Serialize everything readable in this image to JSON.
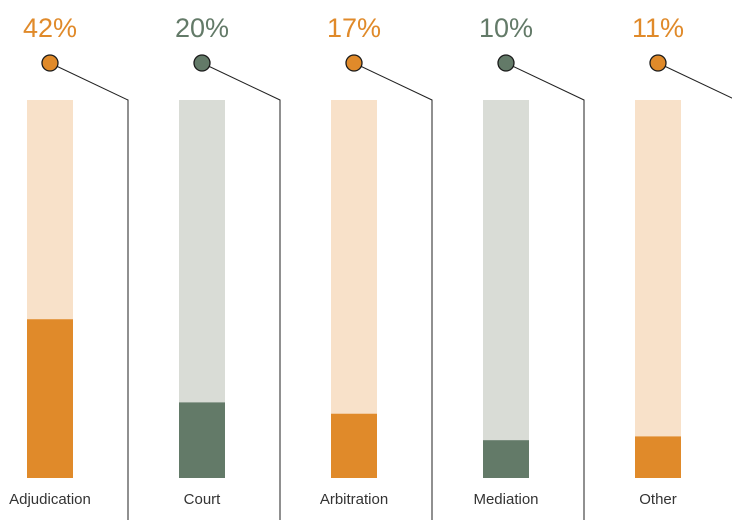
{
  "chart_data": {
    "type": "bar",
    "categories": [
      "Adjudication",
      "Court",
      "Arbitration",
      "Mediation",
      "Other"
    ],
    "values": [
      42,
      20,
      17,
      10,
      11
    ],
    "value_labels": [
      "42%",
      "20%",
      "17%",
      "10%",
      "11%"
    ],
    "ylim": [
      0,
      100
    ],
    "title": "",
    "xlabel": "",
    "ylabel": "",
    "grid": false,
    "legend": "none"
  },
  "colors": {
    "orange": "#e08a2a",
    "orange_track": "#f8e1c9",
    "green": "#637a68",
    "green_track": "#d9dcd6",
    "connector": "#222222"
  },
  "bar_color_keys": [
    "orange",
    "green",
    "orange",
    "green",
    "orange"
  ]
}
